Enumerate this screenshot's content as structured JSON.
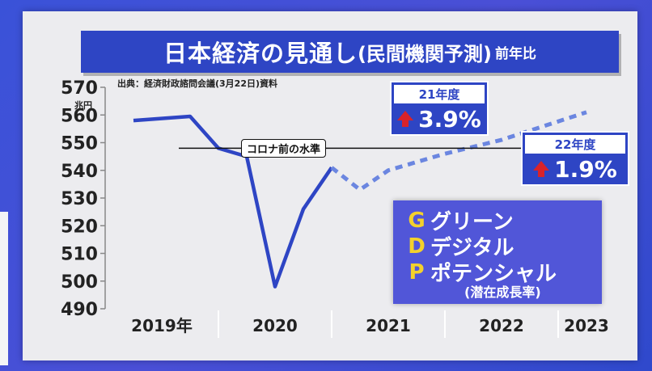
{
  "title": {
    "main": "日本経済の見通し",
    "sub": "(民間機関予測)",
    "suffix": "前年比"
  },
  "source": "出典：経済財政諮問会議(3月22日)資料",
  "y_unit": "兆円",
  "reference_label": "コロナ前の水準",
  "callouts": [
    {
      "year": "21年度",
      "value": "3.9%"
    },
    {
      "year": "22年度",
      "value": "1.9%"
    }
  ],
  "gdp_box": {
    "rows": [
      {
        "letter": "G",
        "word": "グリーン"
      },
      {
        "letter": "D",
        "word": "デジタル"
      },
      {
        "letter": "P",
        "word": "ポテンシャル"
      }
    ],
    "note": "(潜在成長率)"
  },
  "colors": {
    "series": "#2e45c4",
    "dashed": "#6b86e0",
    "title_bg": "#2e45c4",
    "arrow": "#d8232a",
    "gdp_letter": "#f3d12c"
  },
  "chart_data": {
    "type": "line",
    "ylim": [
      490,
      570
    ],
    "yticks": [
      490,
      500,
      510,
      520,
      530,
      540,
      550,
      560,
      570
    ],
    "x_tick_labels": [
      "2019年",
      "2020",
      "2021",
      "2022",
      "2023"
    ],
    "reference_value": 548,
    "series": [
      {
        "style": "solid",
        "points": [
          {
            "x": 2019.0,
            "y": 558
          },
          {
            "x": 2019.5,
            "y": 559.5
          },
          {
            "x": 2019.75,
            "y": 548
          },
          {
            "x": 2020.0,
            "y": 545
          },
          {
            "x": 2020.25,
            "y": 498
          },
          {
            "x": 2020.5,
            "y": 526
          },
          {
            "x": 2020.75,
            "y": 541
          }
        ]
      },
      {
        "style": "dashed",
        "points": [
          {
            "x": 2020.75,
            "y": 541
          },
          {
            "x": 2021.0,
            "y": 533
          },
          {
            "x": 2021.25,
            "y": 540
          },
          {
            "x": 2021.75,
            "y": 546
          },
          {
            "x": 2022.25,
            "y": 551
          },
          {
            "x": 2023.0,
            "y": 561
          }
        ]
      }
    ]
  }
}
